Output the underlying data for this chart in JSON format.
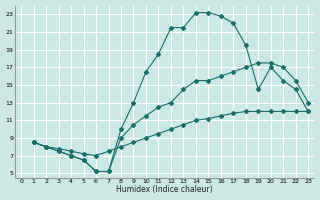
{
  "xlabel": "Humidex (Indice chaleur)",
  "bg_color": "#cce8e5",
  "grid_color": "#ffffff",
  "line_color": "#1a6e6a",
  "xlim": [
    -0.5,
    23.5
  ],
  "ylim": [
    4.5,
    24
  ],
  "xticks": [
    0,
    1,
    2,
    3,
    4,
    5,
    6,
    7,
    8,
    9,
    10,
    11,
    12,
    13,
    14,
    15,
    16,
    17,
    18,
    19,
    20,
    21,
    22,
    23
  ],
  "yticks": [
    5,
    7,
    9,
    11,
    13,
    15,
    17,
    19,
    21,
    23
  ],
  "line1_x": [
    1,
    2,
    3,
    4,
    5,
    6,
    7,
    8,
    9,
    10,
    11,
    12,
    13,
    14,
    15,
    16,
    17,
    18,
    19,
    20,
    21,
    22,
    23
  ],
  "line1_y": [
    8.5,
    8.0,
    7.5,
    7.0,
    6.5,
    5.2,
    5.2,
    10.0,
    13.0,
    16.5,
    18.5,
    21.5,
    21.5,
    23.2,
    23.2,
    22.8,
    22.0,
    19.5,
    14.5,
    17.0,
    15.5,
    14.5,
    12.0
  ],
  "line2_x": [
    1,
    2,
    3,
    4,
    5,
    6,
    7,
    8,
    9,
    10,
    11,
    12,
    13,
    14,
    15,
    16,
    17,
    18,
    19,
    20,
    21,
    22,
    23
  ],
  "line2_y": [
    8.5,
    8.0,
    7.5,
    7.0,
    6.5,
    5.2,
    5.2,
    9.0,
    10.5,
    11.5,
    12.5,
    13.0,
    14.5,
    15.5,
    15.5,
    16.0,
    16.5,
    17.0,
    17.5,
    17.5,
    17.0,
    15.5,
    13.0
  ],
  "line3_x": [
    1,
    2,
    3,
    4,
    5,
    6,
    7,
    8,
    9,
    10,
    11,
    12,
    13,
    14,
    15,
    16,
    17,
    18,
    19,
    20,
    21,
    22,
    23
  ],
  "line3_y": [
    8.5,
    8.0,
    7.8,
    7.5,
    7.2,
    7.0,
    7.5,
    8.0,
    8.5,
    9.0,
    9.5,
    10.0,
    10.5,
    11.0,
    11.2,
    11.5,
    11.8,
    12.0,
    12.0,
    12.0,
    12.0,
    12.0,
    12.0
  ]
}
